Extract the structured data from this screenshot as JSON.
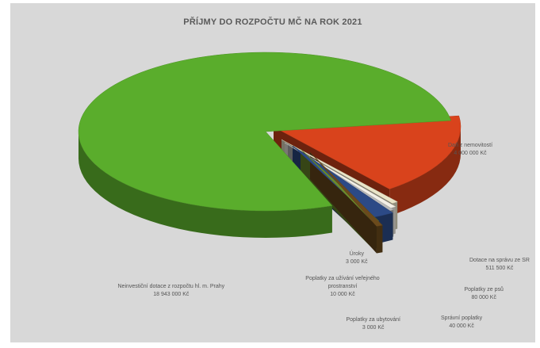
{
  "chart_data": {
    "type": "pie",
    "title": "PŘÍJMY DO ROZPOČTU MČ NA ROK 2021",
    "unit": "Kč",
    "slices": [
      {
        "name": "Daň z nemovitostí",
        "value_label": "4 000 000 Kč",
        "value": 4000000,
        "color": "#d9431c"
      },
      {
        "name": "Úroky",
        "value_label": "3 000 Kč",
        "value": 3000,
        "color": "#e9e4c8"
      },
      {
        "name": "Poplatky za užívání veřejného prostranství",
        "value_label": "10 000 Kč",
        "value": 10000,
        "color": "#f3efe6"
      },
      {
        "name": "Poplatky za ubytování",
        "value_label": "3 000 Kč",
        "value": 3000,
        "color": "#b8b8b8"
      },
      {
        "name": "Dotace na správu ze SR",
        "value_label": "511 500 Kč",
        "value": 511500,
        "color": "#2c4a86"
      },
      {
        "name": "Správní poplatky",
        "value_label": "40 000 Kč",
        "value": 40000,
        "color": "#6b8a2c"
      },
      {
        "name": "Poplatky ze psů",
        "value_label": "80 000 Kč",
        "value": 80000,
        "color": "#6b4a1c"
      },
      {
        "name": "Neinvestiční dotace z rozpočtu hl. m. Prahy",
        "value_label": "18 943 000 Kč",
        "value": 18943000,
        "color": "#5aad2c"
      }
    ]
  }
}
